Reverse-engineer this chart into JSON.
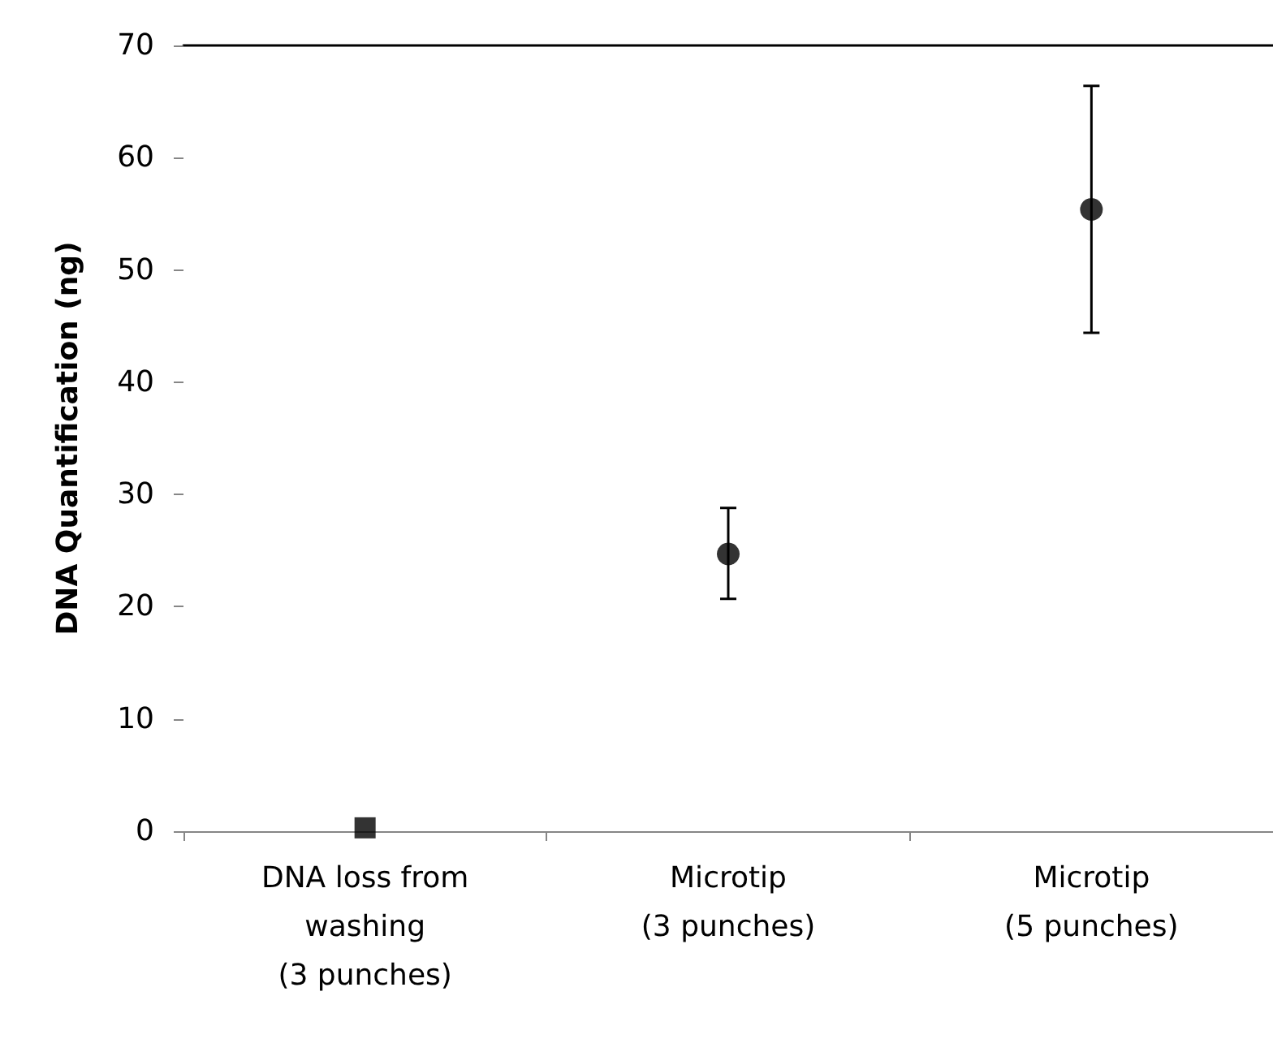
{
  "chart_data": {
    "type": "scatter",
    "ylabel": "DNA Quantification (ng)",
    "categories": [
      "DNA loss from\nwashing\n(3 punches)",
      "Microtip\n(3 punches)",
      "Microtip\n(5 punches)"
    ],
    "series": [
      {
        "x": [
          "DNA loss from\nwashing\n(3 punches)"
        ],
        "values": [
          0.3
        ],
        "color": "#000000",
        "marker": "square"
      },
      {
        "x": [
          "Microtip\n(3 punches)",
          "Microtip\n(5 punches)"
        ],
        "values": [
          24.7,
          55.4
        ],
        "errors": [
          [
            20.7,
            28.8
          ],
          [
            44.4,
            66.4
          ]
        ],
        "color": "#000000",
        "marker": "circle"
      }
    ],
    "ylim": [
      0,
      70
    ],
    "yticks": [
      0,
      10,
      20,
      30,
      40,
      50,
      60,
      70
    ],
    "grid": false
  }
}
